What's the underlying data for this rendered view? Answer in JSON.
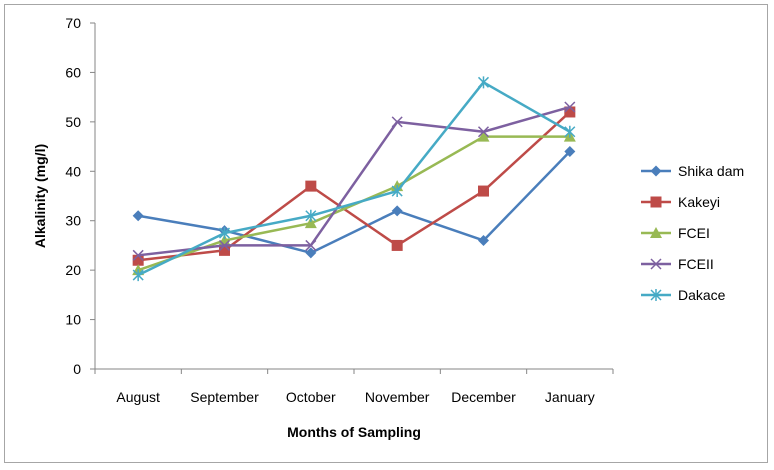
{
  "chart_data": {
    "type": "line",
    "title": "",
    "xlabel": "Months of Sampling",
    "ylabel": "Alkalinity (mg/l)",
    "categories": [
      "August",
      "September",
      "October",
      "November",
      "December",
      "January"
    ],
    "ylim": [
      0,
      70
    ],
    "yticks": [
      0,
      10,
      20,
      30,
      40,
      50,
      60,
      70
    ],
    "grid": false,
    "legend_position": "right",
    "series": [
      {
        "name": "Shika dam",
        "values": [
          31,
          28,
          23.5,
          32,
          26,
          44
        ],
        "color": "#4a7ebb",
        "marker": "diamond"
      },
      {
        "name": "Kakeyi",
        "values": [
          22,
          24,
          37,
          25,
          36,
          52
        ],
        "color": "#be4b48",
        "marker": "square"
      },
      {
        "name": "FCEI",
        "values": [
          20,
          26,
          29.5,
          37,
          47,
          47
        ],
        "color": "#98b954",
        "marker": "triangle"
      },
      {
        "name": "FCEII",
        "values": [
          23,
          25,
          25,
          50,
          48,
          53
        ],
        "color": "#7d60a0",
        "marker": "x"
      },
      {
        "name": "Dakace",
        "values": [
          19,
          27.5,
          31,
          36,
          58,
          48
        ],
        "color": "#46aac5",
        "marker": "star"
      }
    ]
  }
}
